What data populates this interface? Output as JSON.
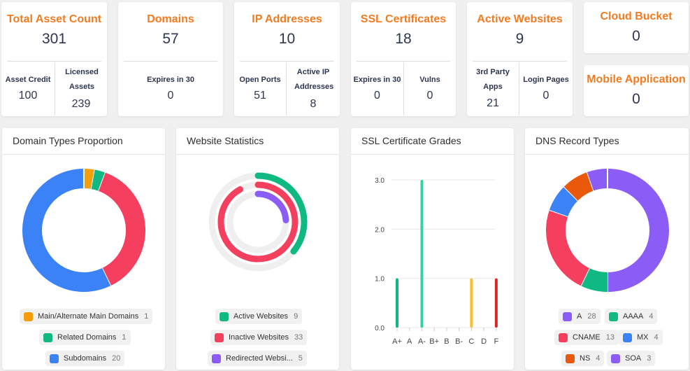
{
  "stats": {
    "total_asset": {
      "title": "Total Asset Count",
      "value": "301",
      "sub": [
        {
          "label": "Asset Credit",
          "value": "100"
        },
        {
          "label": "Licensed Assets",
          "value": "239"
        }
      ]
    },
    "domains": {
      "title": "Domains",
      "value": "57",
      "sub": [
        {
          "label": "Expires in 30",
          "value": "0"
        }
      ]
    },
    "ip": {
      "title": "IP Addresses",
      "value": "10",
      "sub": [
        {
          "label": "Open Ports",
          "value": "51"
        },
        {
          "label": "Active IP Addresses",
          "value": "8"
        }
      ]
    },
    "ssl": {
      "title": "SSL Certificates",
      "value": "18",
      "sub": [
        {
          "label": "Expires in 30",
          "value": "0"
        },
        {
          "label": "Vulns",
          "value": "0"
        }
      ]
    },
    "websites": {
      "title": "Active Websites",
      "value": "9",
      "sub": [
        {
          "label": "3rd Party Apps",
          "value": "21"
        },
        {
          "label": "Login Pages",
          "value": "0"
        }
      ]
    },
    "cloud": {
      "title": "Cloud Bucket",
      "value": "0"
    },
    "mobile": {
      "title": "Mobile Application",
      "value": "0"
    }
  },
  "charts": {
    "domain_types": {
      "title": "Domain Types Proportion"
    },
    "website_stats": {
      "title": "Website Statistics"
    },
    "ssl_grades": {
      "title": "SSL Certificate Grades"
    },
    "dns_types": {
      "title": "DNS Record Types"
    }
  },
  "chart_data": [
    {
      "type": "pie",
      "chart": "Domain Types Proportion",
      "series": [
        {
          "name": "Main/Alternate Main Domains",
          "value": 1,
          "color": "#f59e0b"
        },
        {
          "name": "Related Domains",
          "value": 1,
          "color": "#10b981"
        },
        {
          "name": "Subdomains",
          "value": 20,
          "color": "#3b82f6"
        }
      ],
      "extra_series_color": "#f43f5e",
      "extra_series_value": 13
    },
    {
      "type": "radial-bar",
      "chart": "Website Statistics",
      "series": [
        {
          "name": "Active Websites",
          "value": 9,
          "color": "#10b981"
        },
        {
          "name": "Inactive Websites",
          "value": 33,
          "color": "#f43f5e"
        },
        {
          "name": "Redirected Websi...",
          "value": 5,
          "color": "#8b5cf6"
        }
      ]
    },
    {
      "type": "bar",
      "chart": "SSL Certificate Grades",
      "categories": [
        "A+",
        "A",
        "A-",
        "B+",
        "B",
        "B-",
        "C",
        "D",
        "F"
      ],
      "values": [
        1,
        0,
        3,
        0,
        0,
        0,
        1,
        0,
        1
      ],
      "colors": [
        "#10b981",
        "#10b981",
        "#34d399",
        "#34d399",
        "#34d399",
        "#34d399",
        "#fbbf24",
        "#ef4444",
        "#dc2626"
      ],
      "yticks": [
        "0.0",
        "1.0",
        "2.0",
        "3.0"
      ],
      "ylim": [
        0,
        3.5
      ]
    },
    {
      "type": "pie",
      "chart": "DNS Record Types",
      "series": [
        {
          "name": "A",
          "value": 28,
          "color": "#8b5cf6"
        },
        {
          "name": "AAAA",
          "value": 4,
          "color": "#10b981"
        },
        {
          "name": "CNAME",
          "value": 13,
          "color": "#f43f5e"
        },
        {
          "name": "MX",
          "value": 4,
          "color": "#3b82f6"
        },
        {
          "name": "NS",
          "value": 4,
          "color": "#ea580c"
        },
        {
          "name": "SOA",
          "value": 3,
          "color": "#8b5cf6"
        }
      ]
    }
  ]
}
